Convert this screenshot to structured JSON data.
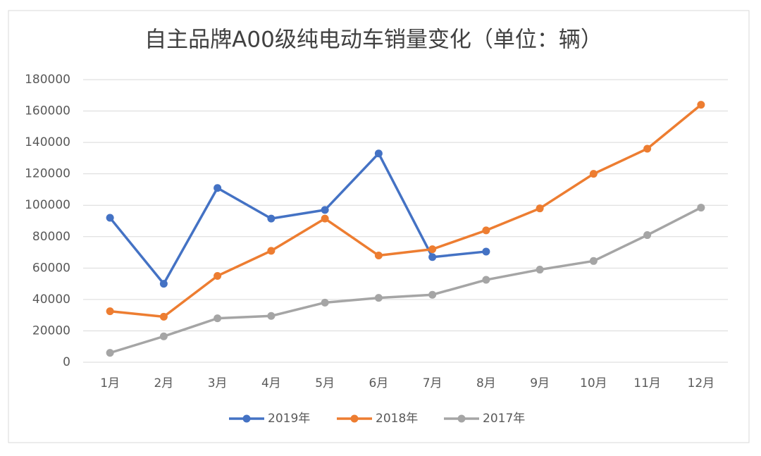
{
  "chart_data": {
    "type": "line",
    "title": "自主品牌A00级纯电动车销量变化（单位：辆）",
    "categories": [
      "1月",
      "2月",
      "3月",
      "4月",
      "5月",
      "6月",
      "7月",
      "8月",
      "9月",
      "10月",
      "11月",
      "12月"
    ],
    "series": [
      {
        "name": "2019年",
        "color": "#4472c4",
        "values": [
          92000,
          50000,
          111000,
          91500,
          97000,
          133000,
          67000,
          70500,
          null,
          null,
          null,
          null
        ]
      },
      {
        "name": "2018年",
        "color": "#ed7d31",
        "values": [
          32500,
          29000,
          55000,
          71000,
          91500,
          68000,
          72000,
          84000,
          98000,
          120000,
          136000,
          164000
        ]
      },
      {
        "name": "2017年",
        "color": "#a5a5a5",
        "values": [
          6000,
          16500,
          28000,
          29500,
          38000,
          41000,
          43000,
          52500,
          59000,
          64500,
          81000,
          98500
        ]
      }
    ],
    "ylim": [
      0,
      180000
    ],
    "yticks": [
      0,
      20000,
      40000,
      60000,
      80000,
      100000,
      120000,
      140000,
      160000,
      180000
    ],
    "grid": true,
    "legend": "bottom"
  }
}
